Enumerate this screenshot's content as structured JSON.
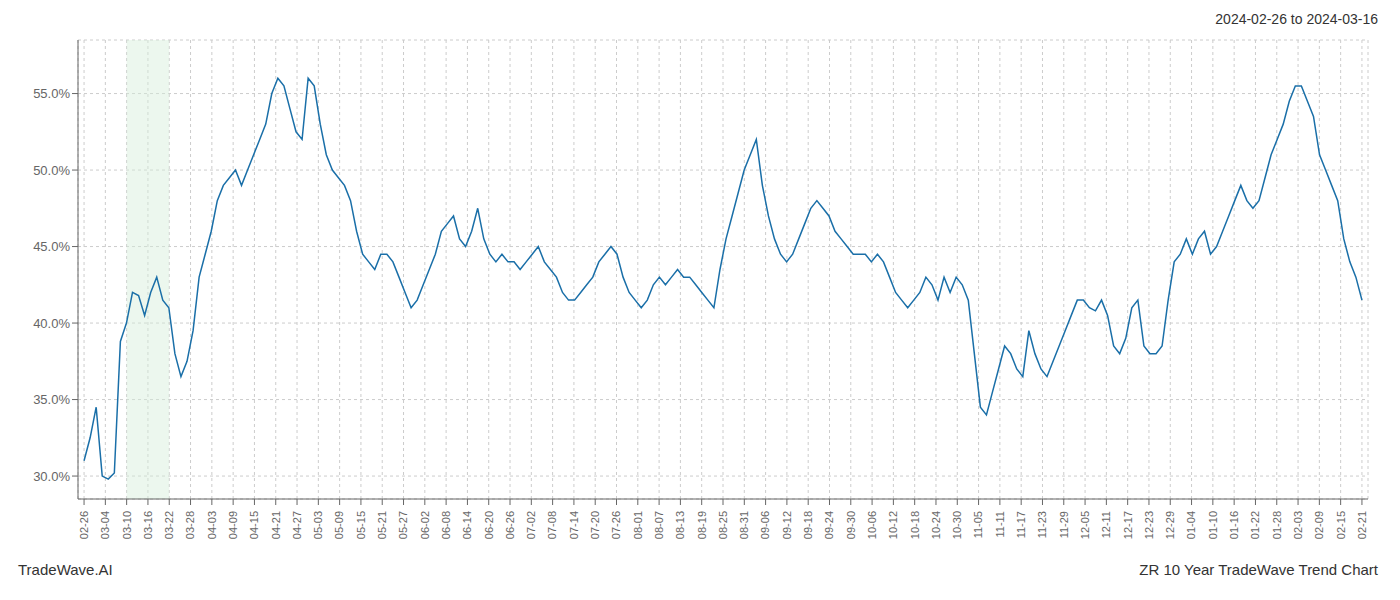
{
  "chart_data": {
    "type": "line",
    "title": "2024-02-26 to 2024-03-16",
    "annotations": [
      "TradeWave.AI",
      "ZR 10 Year TradeWave Trend Chart"
    ],
    "color": "#1a6fa8",
    "grid": true,
    "shade": {
      "from": "03-10",
      "to": "03-22",
      "color": "#d4edda"
    },
    "ylim": [
      0.285,
      0.585
    ],
    "yticks": [
      {
        "value": 0.3,
        "label": "30.0%"
      },
      {
        "value": 0.35,
        "label": "35.0%"
      },
      {
        "value": 0.4,
        "label": "40.0%"
      },
      {
        "value": 0.45,
        "label": "45.0%"
      },
      {
        "value": 0.5,
        "label": "50.0%"
      },
      {
        "value": 0.55,
        "label": "55.0%"
      }
    ],
    "xlim": [
      -1,
      212
    ],
    "xticks": [
      {
        "value": 0,
        "label": "02-26"
      },
      {
        "value": 3.5167,
        "label": "03-04"
      },
      {
        "value": 7.0333,
        "label": "03-10"
      },
      {
        "value": 10.55,
        "label": "03-16"
      },
      {
        "value": 14.0667,
        "label": "03-22"
      },
      {
        "value": 17.5833,
        "label": "03-28"
      },
      {
        "value": 21.1,
        "label": "04-03"
      },
      {
        "value": 24.6167,
        "label": "04-09"
      },
      {
        "value": 28.1333,
        "label": "04-15"
      },
      {
        "value": 31.65,
        "label": "04-21"
      },
      {
        "value": 35.1667,
        "label": "04-27"
      },
      {
        "value": 38.6833,
        "label": "05-03"
      },
      {
        "value": 42.2,
        "label": "05-09"
      },
      {
        "value": 45.7167,
        "label": "05-15"
      },
      {
        "value": 49.2333,
        "label": "05-21"
      },
      {
        "value": 52.75,
        "label": "05-27"
      },
      {
        "value": 56.2667,
        "label": "06-02"
      },
      {
        "value": 59.7833,
        "label": "06-08"
      },
      {
        "value": 63.3,
        "label": "06-14"
      },
      {
        "value": 66.8167,
        "label": "06-20"
      },
      {
        "value": 70.3333,
        "label": "06-26"
      },
      {
        "value": 73.85,
        "label": "07-02"
      },
      {
        "value": 77.3667,
        "label": "07-08"
      },
      {
        "value": 80.8833,
        "label": "07-14"
      },
      {
        "value": 84.4,
        "label": "07-20"
      },
      {
        "value": 87.9167,
        "label": "07-26"
      },
      {
        "value": 91.4333,
        "label": "08-01"
      },
      {
        "value": 94.95,
        "label": "08-07"
      },
      {
        "value": 98.4667,
        "label": "08-13"
      },
      {
        "value": 101.9833,
        "label": "08-19"
      },
      {
        "value": 105.5,
        "label": "08-25"
      },
      {
        "value": 109.0167,
        "label": "08-31"
      },
      {
        "value": 112.5333,
        "label": "09-06"
      },
      {
        "value": 116.05,
        "label": "09-12"
      },
      {
        "value": 119.5667,
        "label": "09-18"
      },
      {
        "value": 123.0833,
        "label": "09-24"
      },
      {
        "value": 126.6,
        "label": "09-30"
      },
      {
        "value": 130.1167,
        "label": "10-06"
      },
      {
        "value": 133.6333,
        "label": "10-12"
      },
      {
        "value": 137.15,
        "label": "10-18"
      },
      {
        "value": 140.6667,
        "label": "10-24"
      },
      {
        "value": 144.1833,
        "label": "10-30"
      },
      {
        "value": 147.7,
        "label": "11-05"
      },
      {
        "value": 151.2167,
        "label": "11-11"
      },
      {
        "value": 154.7333,
        "label": "11-17"
      },
      {
        "value": 158.25,
        "label": "11-23"
      },
      {
        "value": 161.7667,
        "label": "11-29"
      },
      {
        "value": 165.2833,
        "label": "12-05"
      },
      {
        "value": 168.8,
        "label": "12-11"
      },
      {
        "value": 172.3167,
        "label": "12-17"
      },
      {
        "value": 175.8333,
        "label": "12-23"
      },
      {
        "value": 179.35,
        "label": "12-29"
      },
      {
        "value": 182.8667,
        "label": "01-04"
      },
      {
        "value": 186.3833,
        "label": "01-10"
      },
      {
        "value": 189.9,
        "label": "01-16"
      },
      {
        "value": 193.4167,
        "label": "01-22"
      },
      {
        "value": 196.9333,
        "label": "01-28"
      },
      {
        "value": 200.45,
        "label": "02-03"
      },
      {
        "value": 203.9667,
        "label": "02-09"
      },
      {
        "value": 207.4833,
        "label": "02-15"
      },
      {
        "value": 211,
        "label": "02-21"
      }
    ],
    "values": [
      0.31,
      0.325,
      0.345,
      0.3,
      0.298,
      0.302,
      0.388,
      0.4,
      0.42,
      0.418,
      0.405,
      0.42,
      0.43,
      0.415,
      0.41,
      0.38,
      0.365,
      0.375,
      0.395,
      0.43,
      0.445,
      0.46,
      0.48,
      0.49,
      0.495,
      0.5,
      0.49,
      0.5,
      0.51,
      0.52,
      0.53,
      0.55,
      0.56,
      0.555,
      0.54,
      0.525,
      0.52,
      0.56,
      0.555,
      0.53,
      0.51,
      0.5,
      0.495,
      0.49,
      0.48,
      0.46,
      0.445,
      0.44,
      0.435,
      0.445,
      0.445,
      0.44,
      0.43,
      0.42,
      0.41,
      0.415,
      0.425,
      0.435,
      0.445,
      0.46,
      0.465,
      0.47,
      0.455,
      0.45,
      0.46,
      0.475,
      0.455,
      0.445,
      0.44,
      0.445,
      0.44,
      0.44,
      0.435,
      0.44,
      0.445,
      0.45,
      0.44,
      0.435,
      0.43,
      0.42,
      0.415,
      0.415,
      0.42,
      0.425,
      0.43,
      0.44,
      0.445,
      0.45,
      0.445,
      0.43,
      0.42,
      0.415,
      0.41,
      0.415,
      0.425,
      0.43,
      0.425,
      0.43,
      0.435,
      0.43,
      0.43,
      0.425,
      0.42,
      0.415,
      0.41,
      0.435,
      0.455,
      0.47,
      0.485,
      0.5,
      0.51,
      0.52,
      0.49,
      0.47,
      0.455,
      0.445,
      0.44,
      0.445,
      0.455,
      0.465,
      0.475,
      0.48,
      0.475,
      0.47,
      0.46,
      0.455,
      0.45,
      0.445,
      0.445,
      0.445,
      0.44,
      0.445,
      0.44,
      0.43,
      0.42,
      0.415,
      0.41,
      0.415,
      0.42,
      0.43,
      0.425,
      0.415,
      0.43,
      0.42,
      0.43,
      0.425,
      0.415,
      0.38,
      0.345,
      0.34,
      0.355,
      0.37,
      0.385,
      0.38,
      0.37,
      0.365,
      0.395,
      0.38,
      0.37,
      0.365,
      0.375,
      0.385,
      0.395,
      0.405,
      0.415,
      0.415,
      0.41,
      0.408,
      0.415,
      0.405,
      0.385,
      0.38,
      0.39,
      0.41,
      0.415,
      0.385,
      0.38,
      0.38,
      0.385,
      0.415,
      0.44,
      0.445,
      0.455,
      0.445,
      0.455,
      0.46,
      0.445,
      0.45,
      0.46,
      0.47,
      0.48,
      0.49,
      0.48,
      0.475,
      0.48,
      0.495,
      0.51,
      0.52,
      0.53,
      0.545,
      0.555,
      0.555,
      0.545,
      0.535,
      0.51,
      0.5,
      0.49,
      0.48,
      0.455,
      0.44,
      0.43,
      0.415
    ]
  }
}
